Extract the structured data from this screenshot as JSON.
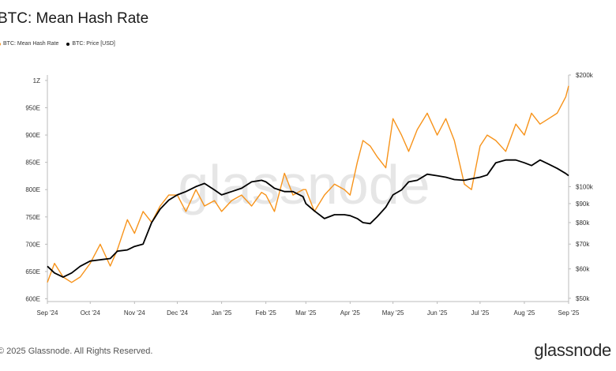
{
  "title": "BTC: Mean Hash Rate",
  "legend": [
    {
      "label": "BTC: Mean Hash Rate",
      "color": "#f7931a"
    },
    {
      "label": "BTC: Price [USD]",
      "color": "#000000"
    }
  ],
  "watermark": "glassnode",
  "footer": "© 2025 Glassnode. All Rights Reserved.",
  "brand": "glassnode",
  "chart_data": {
    "type": "line",
    "title": "BTC: Mean Hash Rate",
    "x_tick_labels": [
      "Sep '24",
      "Oct '24",
      "Nov '24",
      "Dec '24",
      "Jan '25",
      "Feb '25",
      "Mar '25",
      "Apr '25",
      "May '25",
      "Jun '25",
      "Jul '25",
      "Aug '25",
      "Sep '25"
    ],
    "y_left_tick_labels": [
      "600E",
      "650E",
      "700E",
      "750E",
      "800E",
      "850E",
      "900E",
      "950E",
      "1Z"
    ],
    "y_left_values": [
      600,
      650,
      700,
      750,
      800,
      850,
      900,
      950,
      1000
    ],
    "y_left_range": [
      595,
      1010
    ],
    "y_right_tick_labels": [
      "$50k",
      "$60k",
      "$70k",
      "$80k",
      "$90k",
      "$100k",
      "$200k"
    ],
    "y_right_values": [
      50000,
      60000,
      70000,
      80000,
      90000,
      100000,
      200000
    ],
    "y_right_scale": "log",
    "y_right_range": [
      49000,
      200000
    ],
    "grid": false,
    "legend_position": "top-left",
    "series": [
      {
        "name": "BTC: Mean Hash Rate",
        "axis": "left",
        "color": "#f7931a",
        "x": [
          "2024-09-01",
          "2024-09-06",
          "2024-09-12",
          "2024-09-18",
          "2024-09-24",
          "2024-10-01",
          "2024-10-08",
          "2024-10-15",
          "2024-10-20",
          "2024-10-27",
          "2024-11-01",
          "2024-11-07",
          "2024-11-13",
          "2024-11-19",
          "2024-11-25",
          "2024-12-01",
          "2024-12-07",
          "2024-12-14",
          "2024-12-20",
          "2024-12-27",
          "2025-01-01",
          "2025-01-08",
          "2025-01-15",
          "2025-01-22",
          "2025-01-29",
          "2025-02-01",
          "2025-02-07",
          "2025-02-14",
          "2025-02-20",
          "2025-02-27",
          "2025-03-01",
          "2025-03-07",
          "2025-03-14",
          "2025-03-21",
          "2025-03-28",
          "2025-04-01",
          "2025-04-06",
          "2025-04-10",
          "2025-04-15",
          "2025-04-20",
          "2025-04-26",
          "2025-05-01",
          "2025-05-07",
          "2025-05-12",
          "2025-05-18",
          "2025-05-25",
          "2025-06-01",
          "2025-06-07",
          "2025-06-13",
          "2025-06-20",
          "2025-06-25",
          "2025-07-01",
          "2025-07-06",
          "2025-07-12",
          "2025-07-19",
          "2025-07-26",
          "2025-08-01",
          "2025-08-06",
          "2025-08-12",
          "2025-08-18",
          "2025-08-24",
          "2025-08-30",
          "2025-09-01"
        ],
        "values": [
          630,
          665,
          640,
          630,
          640,
          665,
          700,
          660,
          690,
          745,
          720,
          760,
          740,
          770,
          790,
          790,
          760,
          800,
          770,
          780,
          760,
          780,
          790,
          770,
          795,
          790,
          760,
          830,
          790,
          800,
          800,
          760,
          790,
          810,
          800,
          790,
          850,
          890,
          880,
          860,
          840,
          930,
          900,
          870,
          910,
          940,
          900,
          930,
          890,
          810,
          800,
          880,
          900,
          890,
          870,
          920,
          900,
          940,
          920,
          930,
          940,
          970,
          990
        ]
      },
      {
        "name": "BTC: Price [USD]",
        "axis": "right",
        "color": "#000000",
        "x": [
          "2024-09-01",
          "2024-09-06",
          "2024-09-12",
          "2024-09-18",
          "2024-09-24",
          "2024-10-01",
          "2024-10-08",
          "2024-10-15",
          "2024-10-20",
          "2024-10-27",
          "2024-11-01",
          "2024-11-07",
          "2024-11-13",
          "2024-11-19",
          "2024-11-25",
          "2024-12-01",
          "2024-12-07",
          "2024-12-14",
          "2024-12-20",
          "2024-12-27",
          "2025-01-01",
          "2025-01-08",
          "2025-01-15",
          "2025-01-22",
          "2025-01-29",
          "2025-02-01",
          "2025-02-07",
          "2025-02-14",
          "2025-02-20",
          "2025-02-27",
          "2025-03-01",
          "2025-03-07",
          "2025-03-14",
          "2025-03-21",
          "2025-03-28",
          "2025-04-01",
          "2025-04-06",
          "2025-04-10",
          "2025-04-15",
          "2025-04-20",
          "2025-04-26",
          "2025-05-01",
          "2025-05-07",
          "2025-05-12",
          "2025-05-18",
          "2025-05-25",
          "2025-06-01",
          "2025-06-07",
          "2025-06-13",
          "2025-06-20",
          "2025-06-25",
          "2025-07-01",
          "2025-07-06",
          "2025-07-12",
          "2025-07-19",
          "2025-07-26",
          "2025-08-01",
          "2025-08-06",
          "2025-08-12",
          "2025-08-18",
          "2025-08-24",
          "2025-08-30",
          "2025-09-01"
        ],
        "values": [
          61000,
          58500,
          57000,
          58500,
          61000,
          63000,
          63500,
          64000,
          67000,
          67500,
          69000,
          70000,
          80000,
          87000,
          92000,
          95000,
          97000,
          100000,
          102000,
          98000,
          95000,
          97000,
          99000,
          103000,
          104000,
          103000,
          99000,
          97000,
          97000,
          94000,
          90000,
          86000,
          82000,
          84000,
          84000,
          83500,
          82000,
          80000,
          79500,
          83000,
          88000,
          95000,
          98000,
          103000,
          104000,
          108000,
          107000,
          106000,
          104500,
          104000,
          105000,
          106000,
          107500,
          116000,
          118000,
          118000,
          116000,
          114000,
          118000,
          115000,
          112000,
          108500,
          107000
        ]
      }
    ]
  }
}
